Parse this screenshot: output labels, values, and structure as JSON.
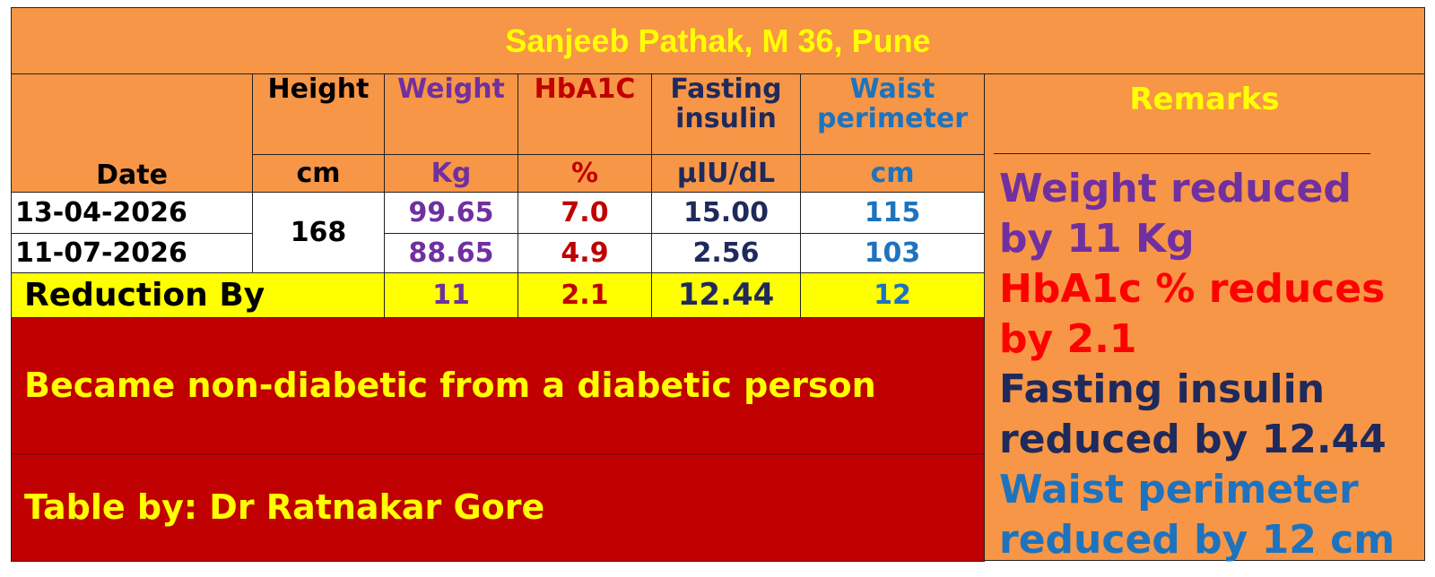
{
  "header": {
    "title": "Sanjeeb Pathak, M 36, Pune"
  },
  "table": {
    "date_header": "Date",
    "columns": [
      {
        "name": "Height",
        "unit": "cm"
      },
      {
        "name": "Weight",
        "unit": "Kg"
      },
      {
        "name": "HbA1C",
        "unit": "%"
      },
      {
        "name": "Fasting insulin",
        "unit": "µIU/dL"
      },
      {
        "name": "Waist perimeter",
        "unit": "cm"
      }
    ],
    "height": "168",
    "rows": [
      {
        "date": "13-04-2026",
        "values": [
          "99.65",
          "7.0",
          "15.00",
          "115"
        ]
      },
      {
        "date": "11-07-2026",
        "values": [
          "88.65",
          "4.9",
          "2.56",
          "103"
        ]
      }
    ],
    "reduction": {
      "label": "Reduction By",
      "values": [
        "11",
        "2.1",
        "12.44",
        "12"
      ]
    }
  },
  "remarks": {
    "title": "Remarks",
    "items": [
      "Weight reduced by 11 Kg",
      "HbA1c % reduces by 2.1",
      "Fasting insulin reduced by 12.44",
      "Waist perimeter reduced by 12 cm"
    ]
  },
  "conclusion": "Became non-diabetic from a diabetic person",
  "credit": "Table by: Dr Ratnakar Gore"
}
